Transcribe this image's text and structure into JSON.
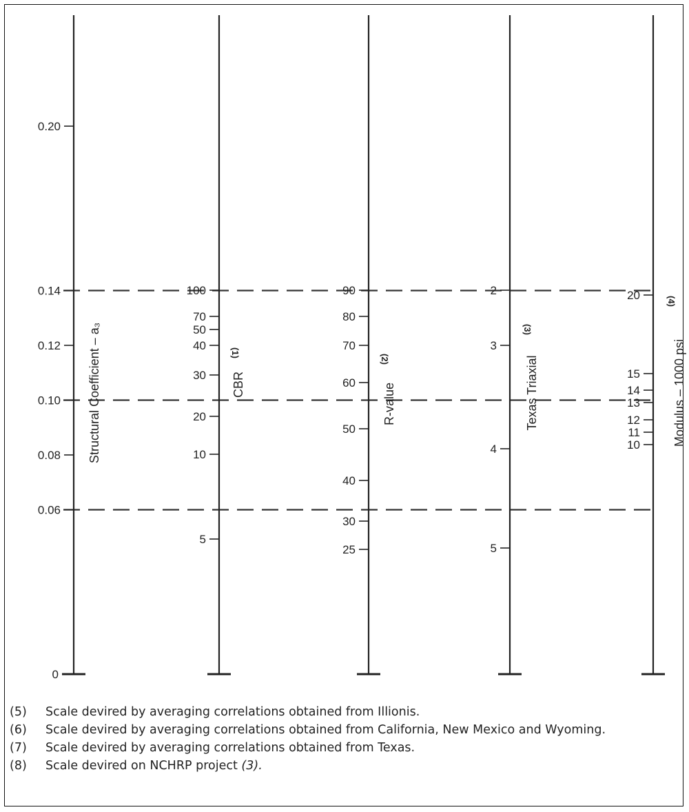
{
  "axes": [
    {
      "key": "structural_coefficient",
      "title": "Structural Coefficient – a₃",
      "note": "",
      "ticks": [
        {
          "label": "0.20",
          "value": 0.2
        },
        {
          "label": "0.14",
          "value": 0.14
        },
        {
          "label": "0.12",
          "value": 0.12
        },
        {
          "label": "0.10",
          "value": 0.1
        },
        {
          "label": "0.08",
          "value": 0.08
        },
        {
          "label": "0.06",
          "value": 0.06
        },
        {
          "label": "0",
          "value": 0
        }
      ]
    },
    {
      "key": "cbr",
      "title": "CBR",
      "note": "(1)",
      "ticks": [
        {
          "label": "100",
          "value": 100
        },
        {
          "label": "70",
          "value": 70
        },
        {
          "label": "50",
          "value": 50
        },
        {
          "label": "40",
          "value": 40
        },
        {
          "label": "30",
          "value": 30
        },
        {
          "label": "20",
          "value": 20
        },
        {
          "label": "10",
          "value": 10
        },
        {
          "label": "5",
          "value": 5
        }
      ]
    },
    {
      "key": "r_value",
      "title": "R-value",
      "note": "(2)",
      "ticks": [
        {
          "label": "90",
          "value": 90
        },
        {
          "label": "80",
          "value": 80
        },
        {
          "label": "70",
          "value": 70
        },
        {
          "label": "60",
          "value": 60
        },
        {
          "label": "50",
          "value": 50
        },
        {
          "label": "40",
          "value": 40
        },
        {
          "label": "30",
          "value": 30
        },
        {
          "label": "25",
          "value": 25
        }
      ]
    },
    {
      "key": "texas_triaxial",
      "title": "Texas Triaxial",
      "note": "(3)",
      "ticks": [
        {
          "label": "2",
          "value": 2
        },
        {
          "label": "3",
          "value": 3
        },
        {
          "label": "4",
          "value": 4
        },
        {
          "label": "5",
          "value": 5
        }
      ]
    },
    {
      "key": "modulus",
      "title": "Modulus – 1000 psi",
      "note": "(4)",
      "ticks": [
        {
          "label": "20",
          "value": 20
        },
        {
          "label": "15",
          "value": 15
        },
        {
          "label": "14",
          "value": 14
        },
        {
          "label": "13",
          "value": 13
        },
        {
          "label": "12",
          "value": 12
        },
        {
          "label": "11",
          "value": 11
        },
        {
          "label": "10",
          "value": 10
        }
      ]
    }
  ],
  "reference_lines": [
    0.14,
    0.1,
    0.06
  ],
  "notes": [
    {
      "num": "(5)",
      "text": "Scale devired by averaging correlations obtained from Illionis.",
      "cite": ""
    },
    {
      "num": "(6)",
      "text": "Scale devired by averaging correlations obtained from California, New Mexico and Wyoming.",
      "cite": ""
    },
    {
      "num": "(7)",
      "text": "Scale devired by averaging correlations obtained from Texas.",
      "cite": ""
    },
    {
      "num": "(8)",
      "text": "Scale devired on NCHRP project ",
      "cite": "(3)."
    }
  ]
}
